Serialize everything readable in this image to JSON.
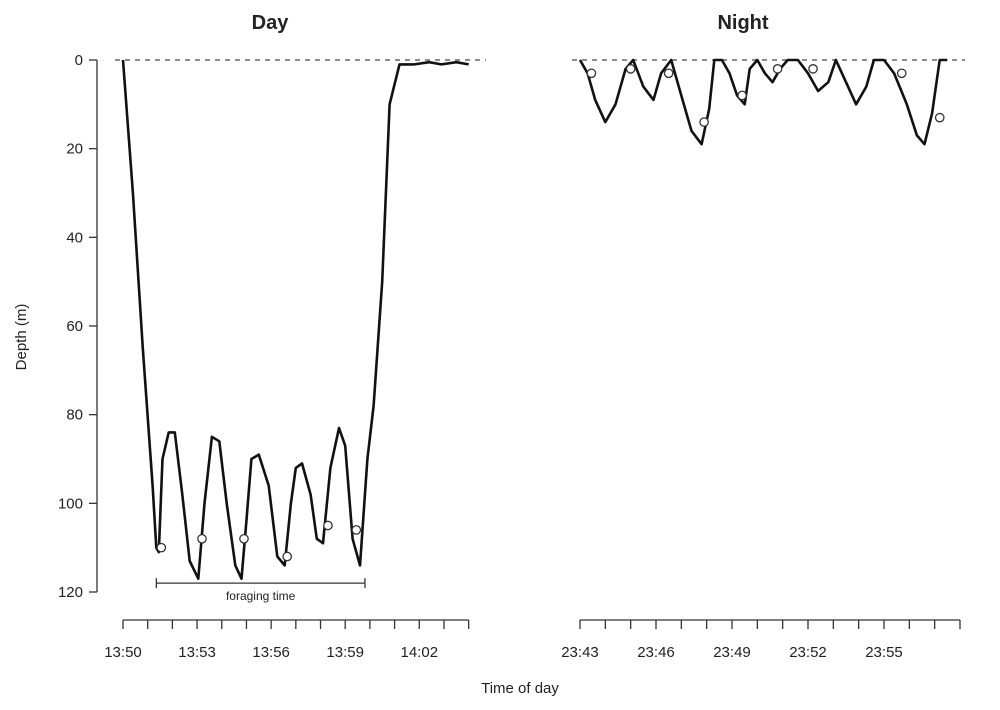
{
  "chart_data": {
    "type": "line",
    "ylabel": "Depth (m)",
    "xlabel": "Time of day",
    "ylim": [
      0,
      120
    ],
    "y_inverted": true,
    "y_ticks": [
      0,
      20,
      40,
      60,
      80,
      100,
      120
    ],
    "y_tick_labels": [
      "0",
      "20",
      "40",
      "60",
      "80",
      "100",
      "120"
    ],
    "reference_line": {
      "y": 0,
      "style": "dashed"
    },
    "panels": [
      {
        "title": "Day",
        "x_unit": "minutes since 13:50",
        "xlim": [
          0,
          14.5
        ],
        "x_ticks": [
          0,
          1,
          2,
          3,
          4,
          5,
          6,
          7,
          8,
          9,
          10,
          11,
          12,
          13,
          14
        ],
        "x_tick_labels": [
          {
            "x": 0,
            "label": "13:50"
          },
          {
            "x": 3,
            "label": "13:53"
          },
          {
            "x": 6,
            "label": "13:56"
          },
          {
            "x": 9,
            "label": "13:59"
          },
          {
            "x": 12,
            "label": "14:02"
          }
        ],
        "series": [
          {
            "x": [
              0,
              0.4,
              0.8,
              1.2,
              1.35,
              1.45,
              1.6,
              1.85,
              2.1,
              2.4,
              2.7,
              3.05,
              3.3,
              3.6,
              3.9,
              4.2,
              4.55,
              4.8,
              5.0,
              5.2,
              5.5,
              5.9,
              6.25,
              6.55,
              6.8,
              7.0,
              7.25,
              7.6,
              7.85,
              8.1,
              8.4,
              8.75,
              9.0,
              9.3,
              9.6,
              9.9,
              10.15,
              10.5,
              10.8,
              11.2,
              11.8,
              12.4,
              12.9,
              13.5,
              14.0
            ]
          },
          {
            "y": [
              0,
              30,
              65,
              96,
              110,
              111,
              90,
              84,
              84,
              98,
              113,
              117,
              100,
              85,
              86,
              100,
              114,
              117,
              104,
              90,
              89,
              96,
              112,
              114,
              100,
              92,
              91,
              98,
              108,
              109,
              92,
              83,
              87,
              108,
              114,
              90,
              78,
              50,
              10,
              1,
              1,
              0.5,
              1,
              0.5,
              1
            ]
          }
        ],
        "markers": [
          {
            "x": 1.55,
            "y": 110
          },
          {
            "x": 3.2,
            "y": 108
          },
          {
            "x": 4.9,
            "y": 108
          },
          {
            "x": 6.65,
            "y": 112
          },
          {
            "x": 8.3,
            "y": 105
          },
          {
            "x": 9.45,
            "y": 106
          }
        ],
        "annotation": {
          "text": "foraging time",
          "x_start": 1.35,
          "x_end": 9.8,
          "y": 118
        }
      },
      {
        "title": "Night",
        "x_unit": "minutes since 23:43",
        "xlim": [
          0,
          15
        ],
        "x_ticks": [
          0,
          1,
          2,
          3,
          4,
          5,
          6,
          7,
          8,
          9,
          10,
          11,
          12,
          13,
          14,
          15
        ],
        "x_tick_labels": [
          {
            "x": 0,
            "label": "23:43"
          },
          {
            "x": 3,
            "label": "23:46"
          },
          {
            "x": 6,
            "label": "23:49"
          },
          {
            "x": 9,
            "label": "23:52"
          },
          {
            "x": 12,
            "label": "23:55"
          }
        ],
        "series": [
          {
            "x": [
              0,
              0.3,
              0.6,
              1.0,
              1.4,
              1.8,
              2.1,
              2.5,
              2.9,
              3.2,
              3.6,
              4.0,
              4.4,
              4.8,
              5.1,
              5.3,
              5.6,
              5.9,
              6.2,
              6.5,
              6.7,
              7.0,
              7.3,
              7.6,
              7.9,
              8.2,
              8.6,
              9.0,
              9.4,
              9.8,
              10.1,
              10.5,
              10.9,
              11.3,
              11.6,
              12.0,
              12.4,
              12.9,
              13.3,
              13.6,
              13.9,
              14.2,
              14.5
            ]
          },
          {
            "y": [
              0,
              3,
              9,
              14,
              10,
              2,
              0,
              6,
              9,
              3,
              0,
              8,
              16,
              19,
              11,
              0,
              0,
              3,
              8,
              10,
              2,
              0,
              3,
              5,
              2,
              0,
              0,
              3,
              7,
              5,
              0,
              5,
              10,
              6,
              0,
              0,
              3,
              10,
              17,
              19,
              12,
              0,
              0
            ]
          }
        ],
        "markers": [
          {
            "x": 0.45,
            "y": 3
          },
          {
            "x": 2.0,
            "y": 2
          },
          {
            "x": 3.5,
            "y": 3
          },
          {
            "x": 4.9,
            "y": 14
          },
          {
            "x": 6.4,
            "y": 8
          },
          {
            "x": 7.8,
            "y": 2
          },
          {
            "x": 9.2,
            "y": 2
          },
          {
            "x": 12.7,
            "y": 3
          },
          {
            "x": 14.2,
            "y": 13
          }
        ]
      }
    ]
  }
}
